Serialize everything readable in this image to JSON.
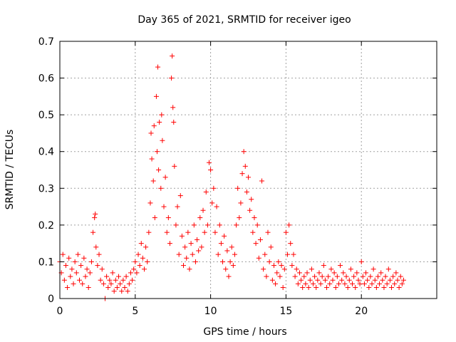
{
  "chart_data": {
    "type": "scatter",
    "title": "Day 365 of 2021, SRMTID for receiver igeo",
    "xlabel": "GPS time / hours",
    "ylabel": "SRMTID / TECUs",
    "xlim": [
      0,
      25
    ],
    "ylim": [
      0,
      0.7
    ],
    "xticks": [
      0,
      5,
      10,
      15,
      20
    ],
    "xtick_labels": [
      "0",
      "5",
      "10",
      "15",
      "20"
    ],
    "yticks": [
      0,
      0.1,
      0.2,
      0.3,
      0.4,
      0.5,
      0.6,
      0.7
    ],
    "ytick_labels": [
      "0",
      "0.1",
      "0.2",
      "0.3",
      "0.4",
      "0.5",
      "0.6",
      "0.7"
    ],
    "grid": true,
    "marker": "+",
    "color": "#ff0000",
    "series": [
      {
        "name": "SRMTID",
        "points": [
          [
            0.0,
            0.1
          ],
          [
            0.1,
            0.07
          ],
          [
            0.2,
            0.12
          ],
          [
            0.3,
            0.05
          ],
          [
            0.4,
            0.09
          ],
          [
            0.5,
            0.03
          ],
          [
            0.6,
            0.11
          ],
          [
            0.7,
            0.06
          ],
          [
            0.8,
            0.08
          ],
          [
            0.9,
            0.04
          ],
          [
            1.0,
            0.1
          ],
          [
            1.1,
            0.07
          ],
          [
            1.2,
            0.12
          ],
          [
            1.3,
            0.05
          ],
          [
            1.4,
            0.09
          ],
          [
            1.5,
            0.04
          ],
          [
            1.6,
            0.11
          ],
          [
            1.7,
            0.06
          ],
          [
            1.8,
            0.08
          ],
          [
            1.9,
            0.03
          ],
          [
            2.0,
            0.07
          ],
          [
            2.1,
            0.1
          ],
          [
            2.2,
            0.18
          ],
          [
            2.3,
            0.22
          ],
          [
            2.35,
            0.23
          ],
          [
            2.4,
            0.14
          ],
          [
            2.5,
            0.09
          ],
          [
            2.6,
            0.12
          ],
          [
            2.7,
            0.05
          ],
          [
            2.8,
            0.08
          ],
          [
            2.9,
            0.04
          ],
          [
            3.0,
            0.0
          ],
          [
            3.1,
            0.06
          ],
          [
            3.2,
            0.03
          ],
          [
            3.3,
            0.05
          ],
          [
            3.4,
            0.04
          ],
          [
            3.5,
            0.07
          ],
          [
            3.6,
            0.02
          ],
          [
            3.7,
            0.05
          ],
          [
            3.8,
            0.03
          ],
          [
            3.9,
            0.06
          ],
          [
            4.0,
            0.04
          ],
          [
            4.1,
            0.02
          ],
          [
            4.2,
            0.05
          ],
          [
            4.3,
            0.03
          ],
          [
            4.4,
            0.06
          ],
          [
            4.5,
            0.02
          ],
          [
            4.6,
            0.04
          ],
          [
            4.7,
            0.07
          ],
          [
            4.8,
            0.05
          ],
          [
            4.9,
            0.08
          ],
          [
            5.0,
            0.1
          ],
          [
            5.1,
            0.07
          ],
          [
            5.2,
            0.12
          ],
          [
            5.3,
            0.09
          ],
          [
            5.4,
            0.15
          ],
          [
            5.5,
            0.11
          ],
          [
            5.6,
            0.08
          ],
          [
            5.7,
            0.14
          ],
          [
            5.8,
            0.1
          ],
          [
            5.9,
            0.18
          ],
          [
            6.0,
            0.26
          ],
          [
            6.05,
            0.45
          ],
          [
            6.1,
            0.38
          ],
          [
            6.2,
            0.32
          ],
          [
            6.25,
            0.47
          ],
          [
            6.3,
            0.22
          ],
          [
            6.4,
            0.55
          ],
          [
            6.45,
            0.4
          ],
          [
            6.5,
            0.63
          ],
          [
            6.55,
            0.35
          ],
          [
            6.6,
            0.48
          ],
          [
            6.7,
            0.3
          ],
          [
            6.75,
            0.5
          ],
          [
            6.8,
            0.43
          ],
          [
            6.9,
            0.25
          ],
          [
            7.0,
            0.33
          ],
          [
            7.1,
            0.18
          ],
          [
            7.2,
            0.22
          ],
          [
            7.3,
            0.15
          ],
          [
            7.4,
            0.6
          ],
          [
            7.45,
            0.66
          ],
          [
            7.5,
            0.52
          ],
          [
            7.55,
            0.48
          ],
          [
            7.6,
            0.36
          ],
          [
            7.7,
            0.2
          ],
          [
            7.8,
            0.25
          ],
          [
            7.9,
            0.12
          ],
          [
            8.0,
            0.28
          ],
          [
            8.1,
            0.17
          ],
          [
            8.2,
            0.09
          ],
          [
            8.3,
            0.14
          ],
          [
            8.4,
            0.11
          ],
          [
            8.5,
            0.18
          ],
          [
            8.6,
            0.08
          ],
          [
            8.7,
            0.15
          ],
          [
            8.8,
            0.12
          ],
          [
            8.9,
            0.2
          ],
          [
            9.0,
            0.1
          ],
          [
            9.1,
            0.16
          ],
          [
            9.2,
            0.13
          ],
          [
            9.3,
            0.22
          ],
          [
            9.4,
            0.14
          ],
          [
            9.5,
            0.24
          ],
          [
            9.6,
            0.18
          ],
          [
            9.7,
            0.29
          ],
          [
            9.8,
            0.2
          ],
          [
            9.9,
            0.37
          ],
          [
            10.0,
            0.35
          ],
          [
            10.1,
            0.26
          ],
          [
            10.2,
            0.3
          ],
          [
            10.3,
            0.18
          ],
          [
            10.4,
            0.25
          ],
          [
            10.5,
            0.12
          ],
          [
            10.6,
            0.2
          ],
          [
            10.7,
            0.15
          ],
          [
            10.8,
            0.1
          ],
          [
            10.9,
            0.17
          ],
          [
            11.0,
            0.08
          ],
          [
            11.1,
            0.13
          ],
          [
            11.2,
            0.06
          ],
          [
            11.3,
            0.1
          ],
          [
            11.4,
            0.14
          ],
          [
            11.5,
            0.09
          ],
          [
            11.6,
            0.12
          ],
          [
            11.7,
            0.2
          ],
          [
            11.8,
            0.3
          ],
          [
            11.9,
            0.22
          ],
          [
            12.0,
            0.26
          ],
          [
            12.1,
            0.34
          ],
          [
            12.2,
            0.4
          ],
          [
            12.3,
            0.36
          ],
          [
            12.4,
            0.29
          ],
          [
            12.5,
            0.33
          ],
          [
            12.6,
            0.24
          ],
          [
            12.7,
            0.27
          ],
          [
            12.8,
            0.18
          ],
          [
            12.9,
            0.22
          ],
          [
            13.0,
            0.15
          ],
          [
            13.1,
            0.2
          ],
          [
            13.2,
            0.11
          ],
          [
            13.3,
            0.16
          ],
          [
            13.4,
            0.32
          ],
          [
            13.5,
            0.08
          ],
          [
            13.6,
            0.12
          ],
          [
            13.7,
            0.06
          ],
          [
            13.8,
            0.18
          ],
          [
            13.9,
            0.1
          ],
          [
            14.0,
            0.14
          ],
          [
            14.1,
            0.05
          ],
          [
            14.2,
            0.09
          ],
          [
            14.3,
            0.04
          ],
          [
            14.4,
            0.07
          ],
          [
            14.5,
            0.1
          ],
          [
            14.6,
            0.06
          ],
          [
            14.7,
            0.09
          ],
          [
            14.8,
            0.03
          ],
          [
            14.9,
            0.08
          ],
          [
            15.0,
            0.18
          ],
          [
            15.1,
            0.12
          ],
          [
            15.2,
            0.2
          ],
          [
            15.3,
            0.15
          ],
          [
            15.4,
            0.09
          ],
          [
            15.5,
            0.12
          ],
          [
            15.6,
            0.06
          ],
          [
            15.7,
            0.08
          ],
          [
            15.8,
            0.04
          ],
          [
            15.9,
            0.07
          ],
          [
            16.0,
            0.05
          ],
          [
            16.1,
            0.03
          ],
          [
            16.2,
            0.06
          ],
          [
            16.3,
            0.04
          ],
          [
            16.4,
            0.07
          ],
          [
            16.5,
            0.03
          ],
          [
            16.6,
            0.05
          ],
          [
            16.7,
            0.08
          ],
          [
            16.8,
            0.04
          ],
          [
            16.9,
            0.06
          ],
          [
            17.0,
            0.03
          ],
          [
            17.1,
            0.05
          ],
          [
            17.2,
            0.07
          ],
          [
            17.3,
            0.04
          ],
          [
            17.4,
            0.06
          ],
          [
            17.5,
            0.09
          ],
          [
            17.6,
            0.05
          ],
          [
            17.7,
            0.03
          ],
          [
            17.8,
            0.06
          ],
          [
            17.9,
            0.04
          ],
          [
            18.0,
            0.08
          ],
          [
            18.1,
            0.05
          ],
          [
            18.2,
            0.07
          ],
          [
            18.3,
            0.03
          ],
          [
            18.4,
            0.06
          ],
          [
            18.5,
            0.04
          ],
          [
            18.6,
            0.09
          ],
          [
            18.7,
            0.05
          ],
          [
            18.8,
            0.07
          ],
          [
            18.9,
            0.04
          ],
          [
            19.0,
            0.06
          ],
          [
            19.1,
            0.03
          ],
          [
            19.2,
            0.05
          ],
          [
            19.3,
            0.08
          ],
          [
            19.4,
            0.04
          ],
          [
            19.5,
            0.06
          ],
          [
            19.6,
            0.03
          ],
          [
            19.7,
            0.07
          ],
          [
            19.8,
            0.05
          ],
          [
            19.9,
            0.04
          ],
          [
            20.0,
            0.1
          ],
          [
            20.1,
            0.06
          ],
          [
            20.2,
            0.04
          ],
          [
            20.3,
            0.07
          ],
          [
            20.4,
            0.05
          ],
          [
            20.5,
            0.03
          ],
          [
            20.6,
            0.06
          ],
          [
            20.7,
            0.04
          ],
          [
            20.8,
            0.08
          ],
          [
            20.9,
            0.05
          ],
          [
            21.0,
            0.03
          ],
          [
            21.1,
            0.06
          ],
          [
            21.2,
            0.04
          ],
          [
            21.3,
            0.07
          ],
          [
            21.4,
            0.05
          ],
          [
            21.5,
            0.03
          ],
          [
            21.6,
            0.06
          ],
          [
            21.7,
            0.04
          ],
          [
            21.8,
            0.08
          ],
          [
            21.9,
            0.05
          ],
          [
            22.0,
            0.03
          ],
          [
            22.1,
            0.06
          ],
          [
            22.2,
            0.04
          ],
          [
            22.3,
            0.07
          ],
          [
            22.4,
            0.05
          ],
          [
            22.5,
            0.03
          ],
          [
            22.6,
            0.06
          ],
          [
            22.7,
            0.04
          ],
          [
            22.8,
            0.05
          ]
        ]
      }
    ]
  }
}
